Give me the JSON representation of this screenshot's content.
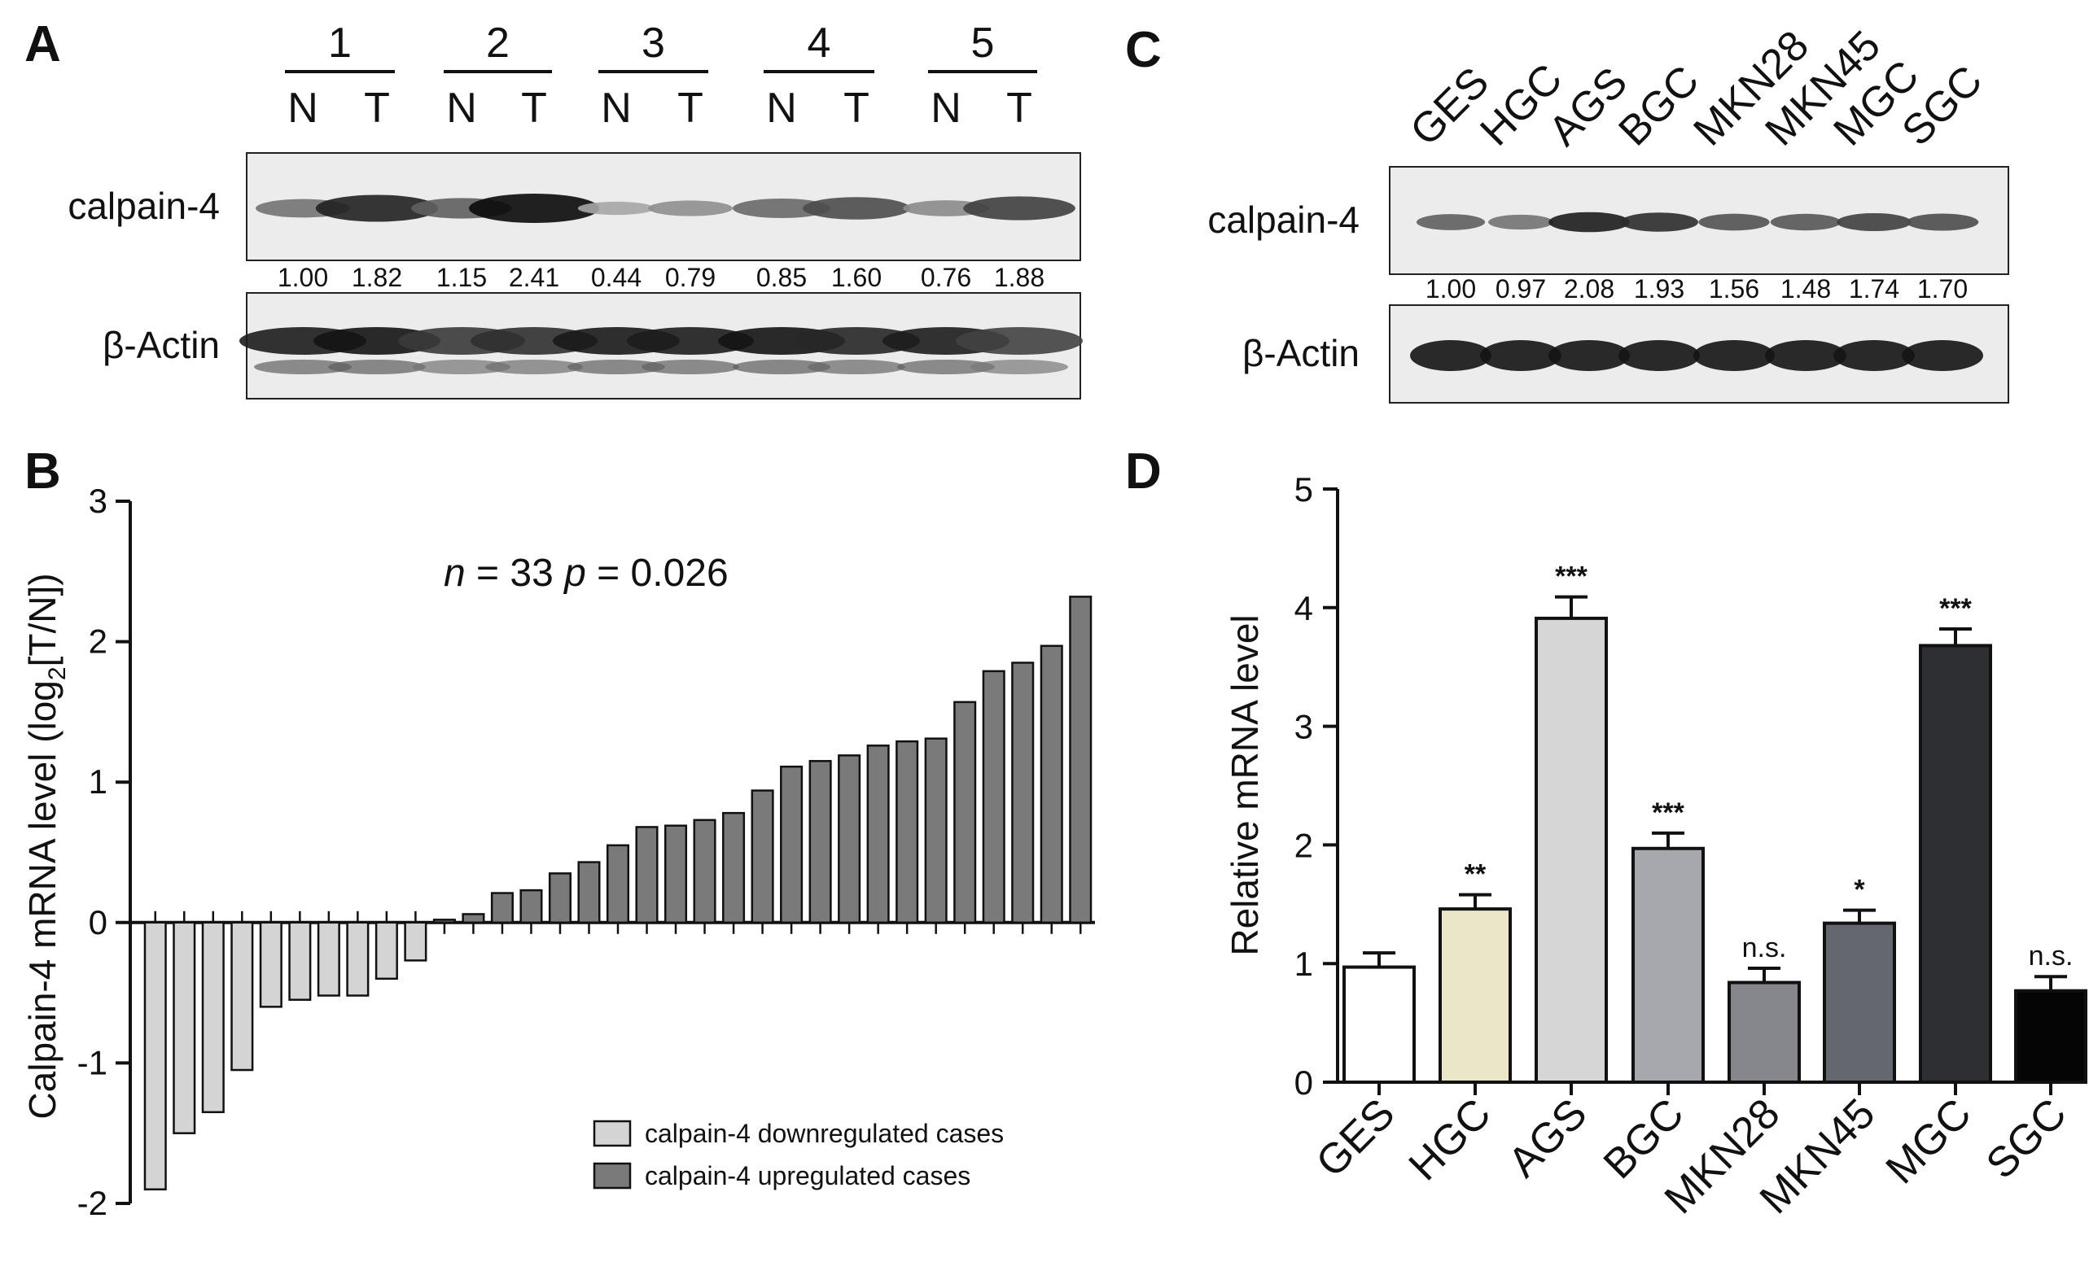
{
  "panels": {
    "A": {
      "letter": "A",
      "groups": [
        "1",
        "2",
        "3",
        "4",
        "5"
      ],
      "lanes": [
        "N",
        "T",
        "N",
        "T",
        "N",
        "T",
        "N",
        "T",
        "N",
        "T"
      ],
      "blots": [
        {
          "label": "calpain-4",
          "intensity": [
            0.45,
            0.88,
            0.55,
            1.0,
            0.18,
            0.3,
            0.5,
            0.65,
            0.32,
            0.72
          ]
        },
        {
          "label": "β-Actin",
          "intensity": [
            0.9,
            0.95,
            0.75,
            0.8,
            0.92,
            0.9,
            0.95,
            0.85,
            0.9,
            0.7
          ]
        }
      ],
      "quantification": [
        "1.00",
        "1.82",
        "1.15",
        "2.41",
        "0.44",
        "0.79",
        "0.85",
        "1.60",
        "0.76",
        "1.88"
      ]
    },
    "C": {
      "letter": "C",
      "lanes": [
        "GES",
        "HGC",
        "AGS",
        "BGC",
        "MKN28",
        "MKN45",
        "MGC",
        "SGC"
      ],
      "blots": [
        {
          "label": "calpain-4",
          "intensity": [
            0.55,
            0.45,
            0.9,
            0.82,
            0.62,
            0.6,
            0.72,
            0.65
          ]
        },
        {
          "label": "β-Actin",
          "intensity": [
            0.95,
            0.95,
            0.95,
            0.95,
            0.95,
            0.95,
            0.95,
            0.95
          ]
        }
      ],
      "quantification": [
        "1.00",
        "0.97",
        "2.08",
        "1.93",
        "1.56",
        "1.48",
        "1.74",
        "1.70"
      ]
    },
    "B": {
      "letter": "B"
    },
    "D": {
      "letter": "D"
    }
  },
  "chart_data": [
    {
      "panel": "B",
      "type": "bar",
      "title": "",
      "stat_n_label": "n",
      "stat_n_value": " = 33 ",
      "stat_p_label": "p",
      "stat_p_value": " = 0.026",
      "ylabel_pre": "Calpain-4 mRNA level (log",
      "ylabel_sub": "2",
      "ylabel_post": "[T/N])",
      "ylim": [
        -2,
        3
      ],
      "yticks": [
        "-2",
        "-1",
        "0",
        "1",
        "2",
        "3"
      ],
      "values": [
        -1.9,
        -1.5,
        -1.35,
        -1.05,
        -0.6,
        -0.55,
        -0.52,
        -0.52,
        -0.4,
        -0.27,
        0.02,
        0.06,
        0.21,
        0.23,
        0.35,
        0.43,
        0.55,
        0.68,
        0.69,
        0.73,
        0.78,
        0.94,
        1.11,
        1.15,
        1.19,
        1.26,
        1.29,
        1.31,
        1.57,
        1.79,
        1.85,
        1.97,
        2.32
      ],
      "series_colors": {
        "down": "#d4d4d4",
        "up": "#7a7a7a"
      },
      "legend": [
        {
          "label": "calpain-4 downregulated cases",
          "color": "#d4d4d4"
        },
        {
          "label": "calpain-4 upregulated cases",
          "color": "#7a7a7a"
        }
      ],
      "legend_position": "bottom-right"
    },
    {
      "panel": "D",
      "type": "bar",
      "title": "",
      "xlabel": "",
      "ylabel": "Relative mRNA level",
      "ylim": [
        0,
        5
      ],
      "yticks": [
        "0",
        "1",
        "2",
        "3",
        "4",
        "5"
      ],
      "categories": [
        "GES",
        "HGC",
        "AGS",
        "BGC",
        "MKN28",
        "MKN45",
        "MGC",
        "SGC"
      ],
      "values": [
        0.97,
        1.46,
        3.91,
        1.97,
        0.84,
        1.34,
        3.68,
        0.77
      ],
      "errors": [
        0.12,
        0.12,
        0.18,
        0.13,
        0.12,
        0.11,
        0.14,
        0.12
      ],
      "colors": [
        "#ffffff",
        "#ece6c8",
        "#d6d6d6",
        "#a7a8ae",
        "#85878d",
        "#64676d",
        "#2d2f33",
        "#050505"
      ],
      "significance": [
        "",
        "**",
        "***",
        "***",
        "n.s.",
        "*",
        "***",
        "n.s."
      ]
    }
  ]
}
